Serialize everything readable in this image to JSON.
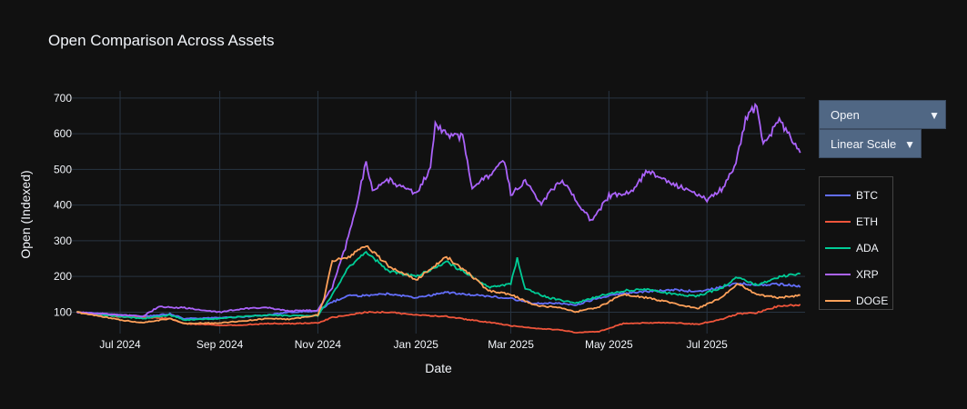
{
  "chart_data": {
    "type": "line",
    "title": "Open Comparison Across Assets",
    "xlabel": "Date",
    "ylabel": "Open (Indexed)",
    "x_range": [
      "2024-06-01",
      "2025-08-31"
    ],
    "ylim": [
      40,
      720
    ],
    "y_ticks": [
      100,
      200,
      300,
      400,
      500,
      600,
      700
    ],
    "x_ticks": [
      {
        "date": "2024-07-01",
        "label": "Jul 2024"
      },
      {
        "date": "2024-09-01",
        "label": "Sep 2024"
      },
      {
        "date": "2024-11-01",
        "label": "Nov 2024"
      },
      {
        "date": "2025-01-01",
        "label": "Jan 2025"
      },
      {
        "date": "2025-03-01",
        "label": "Mar 2025"
      },
      {
        "date": "2025-05-01",
        "label": "May 2025"
      },
      {
        "date": "2025-07-01",
        "label": "Jul 2025"
      }
    ],
    "grid": true,
    "legend_position": "right",
    "series": [
      {
        "name": "BTC",
        "color": "#636efa",
        "points": [
          [
            "2024-06-04",
            100
          ],
          [
            "2024-06-15",
            97
          ],
          [
            "2024-07-01",
            92
          ],
          [
            "2024-07-15",
            88
          ],
          [
            "2024-08-01",
            95
          ],
          [
            "2024-08-10",
            82
          ],
          [
            "2024-09-01",
            84
          ],
          [
            "2024-09-15",
            87
          ],
          [
            "2024-10-01",
            92
          ],
          [
            "2024-10-15",
            100
          ],
          [
            "2024-11-01",
            104
          ],
          [
            "2024-11-10",
            128
          ],
          [
            "2024-11-20",
            146
          ],
          [
            "2024-12-01",
            146
          ],
          [
            "2024-12-15",
            152
          ],
          [
            "2025-01-01",
            140
          ],
          [
            "2025-01-20",
            155
          ],
          [
            "2025-02-01",
            150
          ],
          [
            "2025-02-15",
            145
          ],
          [
            "2025-03-01",
            138
          ],
          [
            "2025-03-15",
            125
          ],
          [
            "2025-04-01",
            125
          ],
          [
            "2025-04-10",
            120
          ],
          [
            "2025-04-25",
            140
          ],
          [
            "2025-05-10",
            152
          ],
          [
            "2025-05-25",
            158
          ],
          [
            "2025-06-10",
            162
          ],
          [
            "2025-06-25",
            158
          ],
          [
            "2025-07-10",
            170
          ],
          [
            "2025-07-20",
            180
          ],
          [
            "2025-08-01",
            177
          ],
          [
            "2025-08-15",
            178
          ],
          [
            "2025-08-28",
            172
          ]
        ]
      },
      {
        "name": "ETH",
        "color": "#ef553b",
        "points": [
          [
            "2024-06-04",
            100
          ],
          [
            "2024-06-15",
            95
          ],
          [
            "2024-07-01",
            87
          ],
          [
            "2024-07-15",
            85
          ],
          [
            "2024-08-01",
            82
          ],
          [
            "2024-08-10",
            68
          ],
          [
            "2024-09-01",
            63
          ],
          [
            "2024-09-15",
            64
          ],
          [
            "2024-10-01",
            68
          ],
          [
            "2024-10-15",
            68
          ],
          [
            "2024-11-01",
            70
          ],
          [
            "2024-11-10",
            85
          ],
          [
            "2024-11-20",
            92
          ],
          [
            "2024-12-01",
            100
          ],
          [
            "2024-12-15",
            100
          ],
          [
            "2025-01-01",
            92
          ],
          [
            "2025-01-20",
            88
          ],
          [
            "2025-02-01",
            80
          ],
          [
            "2025-02-15",
            72
          ],
          [
            "2025-03-01",
            62
          ],
          [
            "2025-03-15",
            55
          ],
          [
            "2025-04-01",
            50
          ],
          [
            "2025-04-10",
            43
          ],
          [
            "2025-04-25",
            46
          ],
          [
            "2025-05-10",
            68
          ],
          [
            "2025-05-25",
            70
          ],
          [
            "2025-06-10",
            70
          ],
          [
            "2025-06-25",
            66
          ],
          [
            "2025-07-10",
            80
          ],
          [
            "2025-07-20",
            95
          ],
          [
            "2025-08-01",
            98
          ],
          [
            "2025-08-15",
            118
          ],
          [
            "2025-08-28",
            120
          ]
        ]
      },
      {
        "name": "ADA",
        "color": "#00cc96",
        "points": [
          [
            "2024-06-04",
            100
          ],
          [
            "2024-06-15",
            95
          ],
          [
            "2024-07-01",
            88
          ],
          [
            "2024-07-15",
            82
          ],
          [
            "2024-08-01",
            92
          ],
          [
            "2024-08-10",
            78
          ],
          [
            "2024-09-01",
            82
          ],
          [
            "2024-09-15",
            88
          ],
          [
            "2024-10-01",
            92
          ],
          [
            "2024-10-15",
            90
          ],
          [
            "2024-11-01",
            90
          ],
          [
            "2024-11-10",
            148
          ],
          [
            "2024-11-20",
            225
          ],
          [
            "2024-12-01",
            270
          ],
          [
            "2024-12-15",
            215
          ],
          [
            "2025-01-01",
            200
          ],
          [
            "2025-01-20",
            240
          ],
          [
            "2025-02-01",
            210
          ],
          [
            "2025-02-15",
            170
          ],
          [
            "2025-03-01",
            180
          ],
          [
            "2025-03-05",
            250
          ],
          [
            "2025-03-10",
            165
          ],
          [
            "2025-03-25",
            140
          ],
          [
            "2025-04-10",
            125
          ],
          [
            "2025-04-25",
            145
          ],
          [
            "2025-05-10",
            160
          ],
          [
            "2025-05-25",
            165
          ],
          [
            "2025-06-10",
            150
          ],
          [
            "2025-06-25",
            145
          ],
          [
            "2025-07-10",
            168
          ],
          [
            "2025-07-20",
            198
          ],
          [
            "2025-08-01",
            175
          ],
          [
            "2025-08-15",
            200
          ],
          [
            "2025-08-28",
            208
          ]
        ]
      },
      {
        "name": "XRP",
        "color": "#ab63fa",
        "points": [
          [
            "2024-06-04",
            100
          ],
          [
            "2024-06-15",
            97
          ],
          [
            "2024-07-01",
            92
          ],
          [
            "2024-07-15",
            88
          ],
          [
            "2024-07-25",
            115
          ],
          [
            "2024-08-10",
            112
          ],
          [
            "2024-09-01",
            100
          ],
          [
            "2024-09-15",
            110
          ],
          [
            "2024-10-01",
            112
          ],
          [
            "2024-10-15",
            103
          ],
          [
            "2024-11-01",
            105
          ],
          [
            "2024-11-10",
            170
          ],
          [
            "2024-11-18",
            280
          ],
          [
            "2024-11-25",
            400
          ],
          [
            "2024-12-01",
            520
          ],
          [
            "2024-12-05",
            440
          ],
          [
            "2024-12-15",
            470
          ],
          [
            "2025-01-01",
            430
          ],
          [
            "2025-01-10",
            500
          ],
          [
            "2025-01-13",
            630
          ],
          [
            "2025-01-20",
            600
          ],
          [
            "2025-01-30",
            590
          ],
          [
            "2025-02-05",
            450
          ],
          [
            "2025-02-15",
            480
          ],
          [
            "2025-02-25",
            525
          ],
          [
            "2025-03-01",
            430
          ],
          [
            "2025-03-10",
            470
          ],
          [
            "2025-03-20",
            405
          ],
          [
            "2025-04-01",
            470
          ],
          [
            "2025-04-10",
            420
          ],
          [
            "2025-04-20",
            355
          ],
          [
            "2025-05-01",
            425
          ],
          [
            "2025-05-15",
            440
          ],
          [
            "2025-05-25",
            495
          ],
          [
            "2025-06-05",
            470
          ],
          [
            "2025-06-20",
            440
          ],
          [
            "2025-07-01",
            415
          ],
          [
            "2025-07-10",
            445
          ],
          [
            "2025-07-18",
            500
          ],
          [
            "2025-07-25",
            640
          ],
          [
            "2025-08-01",
            680
          ],
          [
            "2025-08-05",
            570
          ],
          [
            "2025-08-15",
            635
          ],
          [
            "2025-08-22",
            590
          ],
          [
            "2025-08-28",
            555
          ]
        ]
      },
      {
        "name": "DOGE",
        "color": "#ffa15a",
        "points": [
          [
            "2024-06-04",
            100
          ],
          [
            "2024-06-15",
            92
          ],
          [
            "2024-07-01",
            78
          ],
          [
            "2024-07-15",
            70
          ],
          [
            "2024-08-01",
            82
          ],
          [
            "2024-08-10",
            68
          ],
          [
            "2024-09-01",
            70
          ],
          [
            "2024-09-15",
            75
          ],
          [
            "2024-10-01",
            82
          ],
          [
            "2024-10-15",
            80
          ],
          [
            "2024-11-01",
            92
          ],
          [
            "2024-11-05",
            140
          ],
          [
            "2024-11-10",
            245
          ],
          [
            "2024-11-20",
            255
          ],
          [
            "2024-12-01",
            285
          ],
          [
            "2024-12-15",
            230
          ],
          [
            "2025-01-01",
            190
          ],
          [
            "2025-01-20",
            255
          ],
          [
            "2025-02-01",
            215
          ],
          [
            "2025-02-15",
            160
          ],
          [
            "2025-03-01",
            150
          ],
          [
            "2025-03-15",
            120
          ],
          [
            "2025-04-01",
            112
          ],
          [
            "2025-04-10",
            100
          ],
          [
            "2025-04-25",
            115
          ],
          [
            "2025-05-10",
            150
          ],
          [
            "2025-05-25",
            140
          ],
          [
            "2025-06-10",
            125
          ],
          [
            "2025-06-25",
            110
          ],
          [
            "2025-07-10",
            140
          ],
          [
            "2025-07-20",
            180
          ],
          [
            "2025-08-01",
            150
          ],
          [
            "2025-08-15",
            140
          ],
          [
            "2025-08-28",
            148
          ]
        ]
      }
    ]
  },
  "controls": {
    "metric_dropdown": "Open",
    "scale_dropdown": "Linear Scale",
    "arrow_glyph": "▼"
  }
}
